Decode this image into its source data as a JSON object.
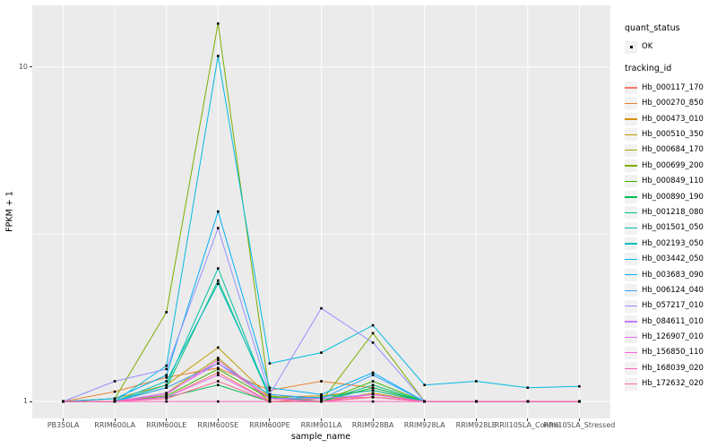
{
  "figure": {
    "background": "#FFFFFF",
    "panel_background": "#EBEBEB",
    "grid_color": "#FFFFFF",
    "axis_text_color": "#4D4D4D",
    "tick_mark_color": "#333333",
    "legend_key_background": "#F2F2F2"
  },
  "legend": {
    "quant_status_title": "quant_status",
    "ok_label": "OK",
    "tracking_id_title": "tracking_id",
    "ok_symbol": "point-icon"
  },
  "chart_data": {
    "type": "line",
    "title": "",
    "xlabel": "sample_name",
    "ylabel": "FPKM + 1",
    "legend_position": "right",
    "grid": true,
    "y_scale": "log10",
    "ylim": [
      0.89,
      15.3
    ],
    "y_breaks": [
      {
        "value": 1,
        "label": "1"
      },
      {
        "value": 10,
        "label": "10"
      }
    ],
    "y_minor_breaks": [
      3.16
    ],
    "point_shape": "square",
    "point_color": "#000000",
    "quant_status": "OK",
    "x_categories": [
      "PB350LA",
      "RRIM600LA",
      "RRIM600LE",
      "RRIM600SE",
      "RRIM600PE",
      "RRIM901LA",
      "RRIM928BA",
      "RRIM928LA",
      "RRIM928LE",
      "RRII105LA_Control",
      "RRII105LA_Stressed"
    ],
    "series": [
      {
        "name": "Hb_000117_170",
        "color": "#F8766D",
        "values": [
          1,
          1,
          1.03,
          1.22,
          1,
          1.02,
          1.03,
          1,
          1,
          1,
          1
        ]
      },
      {
        "name": "Hb_000270_850",
        "color": "#EA8331",
        "values": [
          1,
          1.07,
          1.18,
          1.26,
          1.08,
          1.15,
          1.1,
          1,
          1,
          1,
          1
        ]
      },
      {
        "name": "Hb_000473_010",
        "color": "#D89000",
        "values": [
          1,
          1,
          1.1,
          1.3,
          1.03,
          1.04,
          1.08,
          1,
          1,
          1,
          1
        ]
      },
      {
        "name": "Hb_000510_350",
        "color": "#C09B00",
        "values": [
          1,
          1.02,
          1.12,
          1.45,
          1.03,
          1,
          1.06,
          1,
          1,
          1,
          1
        ]
      },
      {
        "name": "Hb_000684_170",
        "color": "#A3A500",
        "values": [
          1,
          1,
          1.06,
          1.35,
          1,
          1,
          1.03,
          1,
          1,
          1,
          1
        ]
      },
      {
        "name": "Hb_000699_200",
        "color": "#7CAE00",
        "values": [
          1,
          1.02,
          1.85,
          13.5,
          1.04,
          1,
          1.6,
          1,
          1,
          1,
          1
        ]
      },
      {
        "name": "Hb_000849_110",
        "color": "#39B600",
        "values": [
          1,
          1,
          1.04,
          1.25,
          1.02,
          1,
          1.15,
          1,
          1,
          1,
          1
        ]
      },
      {
        "name": "Hb_000890_190",
        "color": "#00BB4E",
        "values": [
          1,
          1,
          1.03,
          1.12,
          1,
          1,
          1.1,
          1,
          1,
          1,
          1
        ]
      },
      {
        "name": "Hb_001218_080",
        "color": "#00BF7D",
        "values": [
          1,
          1,
          1.1,
          2.3,
          1.03,
          1,
          1.12,
          1,
          1,
          1,
          1
        ]
      },
      {
        "name": "Hb_001501_050",
        "color": "#00C1A3",
        "values": [
          1,
          1,
          1.12,
          2.5,
          1.02,
          1.03,
          1.08,
          1,
          1,
          1,
          1
        ]
      },
      {
        "name": "Hb_002193_050",
        "color": "#00BFC4",
        "values": [
          1,
          1,
          1.15,
          2.25,
          1.05,
          1.02,
          1.05,
          1,
          1,
          1,
          1
        ]
      },
      {
        "name": "Hb_003442_050",
        "color": "#00BAE0",
        "values": [
          1,
          1,
          1.28,
          10.8,
          1.3,
          1.4,
          1.69,
          1.12,
          1.15,
          1.1,
          1.11
        ]
      },
      {
        "name": "Hb_003683_090",
        "color": "#00B0F6",
        "values": [
          1,
          1.02,
          1.2,
          3.7,
          1.1,
          1.05,
          1.22,
          1,
          1,
          1,
          1
        ]
      },
      {
        "name": "Hb_006124_040",
        "color": "#35A2FF",
        "values": [
          1,
          1,
          1.1,
          1.3,
          1.05,
          1.02,
          1.2,
          1,
          1,
          1,
          1
        ]
      },
      {
        "name": "Hb_057217_010",
        "color": "#9590FF",
        "values": [
          1,
          1.15,
          1.25,
          3.3,
          1.05,
          1.9,
          1.5,
          1,
          1,
          1,
          1
        ]
      },
      {
        "name": "Hb_084611_010",
        "color": "#C77CFF",
        "values": [
          1,
          1,
          1.06,
          1.3,
          1.02,
          1.02,
          1.05,
          1,
          1,
          1,
          1
        ]
      },
      {
        "name": "Hb_126907_010",
        "color": "#E76BF3",
        "values": [
          1,
          1,
          1.03,
          1.2,
          1,
          1,
          1.03,
          1,
          1,
          1,
          1
        ]
      },
      {
        "name": "Hb_156850_110",
        "color": "#FA62DB",
        "values": [
          1,
          1,
          1.05,
          1.33,
          1.02,
          1,
          1.05,
          1,
          1,
          1,
          1
        ]
      },
      {
        "name": "Hb_168039_020",
        "color": "#FF62BC",
        "values": [
          1,
          1,
          1,
          1,
          1,
          1,
          1,
          1,
          1,
          1,
          1
        ]
      },
      {
        "name": "Hb_172632_020",
        "color": "#FF6A98",
        "values": [
          1,
          1,
          1.02,
          1.15,
          1,
          1,
          1.03,
          1,
          1,
          1,
          1
        ]
      }
    ]
  }
}
